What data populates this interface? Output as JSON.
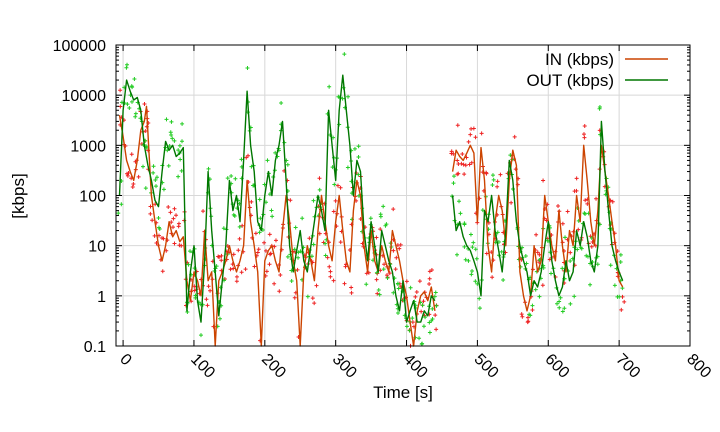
{
  "chart_data": {
    "type": "line",
    "xlabel": "Time [s]",
    "ylabel": "[kbps]",
    "xlim": [
      -10,
      800
    ],
    "ylim": [
      0.1,
      100000
    ],
    "yscale": "log",
    "grid": true,
    "legend_position": "top-right",
    "x_ticks": [
      {
        "value": 0,
        "label": "0"
      },
      {
        "value": 100,
        "label": "100"
      },
      {
        "value": 200,
        "label": "200"
      },
      {
        "value": 300,
        "label": "300"
      },
      {
        "value": 400,
        "label": "400"
      },
      {
        "value": 500,
        "label": "500"
      },
      {
        "value": 600,
        "label": "600"
      },
      {
        "value": 700,
        "label": "700"
      },
      {
        "value": 800,
        "label": "800"
      }
    ],
    "y_ticks": [
      {
        "value": 0.1,
        "label": "0.1"
      },
      {
        "value": 1,
        "label": "1"
      },
      {
        "value": 10,
        "label": "10"
      },
      {
        "value": 100,
        "label": "100"
      },
      {
        "value": 1000,
        "label": "1000"
      },
      {
        "value": 10000,
        "label": "10000"
      },
      {
        "value": 100000,
        "label": "100000"
      }
    ],
    "series": [
      {
        "name": "IN (kbps)",
        "color": "#cc4400",
        "scatter_color": "#ee2222",
        "values": [
          [
            -5,
            4000
          ],
          [
            0,
            1500
          ],
          [
            5,
            500
          ],
          [
            10,
            300
          ],
          [
            15,
            200
          ],
          [
            20,
            500
          ],
          [
            25,
            2000
          ],
          [
            30,
            3000
          ],
          [
            33,
            6000
          ],
          [
            36,
            1000
          ],
          [
            40,
            100
          ],
          [
            45,
            30
          ],
          [
            50,
            10
          ],
          [
            55,
            5
          ],
          [
            60,
            10
          ],
          [
            65,
            30
          ],
          [
            70,
            15
          ],
          [
            75,
            20
          ],
          [
            80,
            12
          ],
          [
            85,
            15
          ],
          [
            90,
            2
          ],
          [
            95,
            0.8
          ],
          [
            100,
            3
          ],
          [
            105,
            2
          ],
          [
            110,
            1
          ],
          [
            115,
            20
          ],
          [
            120,
            2
          ],
          [
            125,
            3
          ],
          [
            130,
            0.1
          ],
          [
            135,
            2
          ],
          [
            140,
            3
          ],
          [
            145,
            5
          ],
          [
            150,
            10
          ],
          [
            155,
            5
          ],
          [
            160,
            3
          ],
          [
            165,
            5
          ],
          [
            170,
            10
          ],
          [
            175,
            200
          ],
          [
            180,
            30
          ],
          [
            185,
            10
          ],
          [
            190,
            3
          ],
          [
            195,
            0.05
          ],
          [
            200,
            5
          ],
          [
            205,
            8
          ],
          [
            210,
            10
          ],
          [
            215,
            5
          ],
          [
            220,
            3
          ],
          [
            225,
            20
          ],
          [
            230,
            100
          ],
          [
            235,
            30
          ],
          [
            240,
            5
          ],
          [
            245,
            2
          ],
          [
            250,
            0.05
          ],
          [
            255,
            3
          ],
          [
            260,
            10
          ],
          [
            265,
            5
          ],
          [
            270,
            2
          ],
          [
            275,
            20
          ],
          [
            280,
            100
          ],
          [
            285,
            30
          ],
          [
            290,
            10
          ],
          [
            295,
            5
          ],
          [
            300,
            30
          ],
          [
            305,
            100
          ],
          [
            310,
            20
          ],
          [
            315,
            5
          ],
          [
            320,
            3
          ],
          [
            325,
            50
          ],
          [
            330,
            200
          ],
          [
            335,
            100
          ],
          [
            340,
            10
          ],
          [
            345,
            3
          ],
          [
            350,
            20
          ],
          [
            355,
            5
          ],
          [
            360,
            3
          ],
          [
            365,
            10
          ],
          [
            370,
            5
          ],
          [
            375,
            3
          ],
          [
            380,
            20
          ],
          [
            385,
            10
          ],
          [
            390,
            5
          ],
          [
            395,
            2
          ],
          [
            400,
            1
          ],
          [
            405,
            0.3
          ],
          [
            410,
            0.1
          ],
          [
            415,
            0.5
          ],
          [
            420,
            1
          ],
          [
            425,
            1.2
          ],
          [
            430,
            0.8
          ],
          [
            435,
            1.5
          ],
          [
            440,
            0.5
          ],
          [
            465,
            300
          ],
          [
            470,
            800
          ],
          [
            475,
            600
          ],
          [
            480,
            500
          ],
          [
            485,
            700
          ],
          [
            490,
            1000
          ],
          [
            495,
            700
          ],
          [
            500,
            30
          ],
          [
            505,
            900
          ],
          [
            510,
            200
          ],
          [
            515,
            10
          ],
          [
            520,
            3
          ],
          [
            525,
            30
          ],
          [
            530,
            100
          ],
          [
            535,
            50
          ],
          [
            540,
            10
          ],
          [
            545,
            200
          ],
          [
            550,
            800
          ],
          [
            555,
            400
          ],
          [
            560,
            3
          ],
          [
            565,
            1
          ],
          [
            570,
            0.5
          ],
          [
            575,
            1
          ],
          [
            580,
            10
          ],
          [
            585,
            3
          ],
          [
            590,
            5
          ],
          [
            595,
            100
          ],
          [
            600,
            30
          ],
          [
            605,
            10
          ],
          [
            610,
            5
          ],
          [
            615,
            50
          ],
          [
            620,
            10
          ],
          [
            625,
            3
          ],
          [
            630,
            20
          ],
          [
            635,
            10
          ],
          [
            640,
            100
          ],
          [
            645,
            30
          ],
          [
            650,
            1000
          ],
          [
            655,
            200
          ],
          [
            660,
            30
          ],
          [
            665,
            10
          ],
          [
            670,
            50
          ],
          [
            675,
            1000
          ],
          [
            680,
            300
          ],
          [
            685,
            100
          ],
          [
            690,
            30
          ],
          [
            695,
            10
          ],
          [
            700,
            2
          ],
          [
            705,
            1.5
          ]
        ]
      },
      {
        "name": "OUT (kbps)",
        "color": "#007700",
        "scatter_color": "#22cc22",
        "values": [
          [
            -5,
            100
          ],
          [
            0,
            5000
          ],
          [
            5,
            20000
          ],
          [
            10,
            12000
          ],
          [
            15,
            8000
          ],
          [
            20,
            9000
          ],
          [
            25,
            5000
          ],
          [
            30,
            1000
          ],
          [
            35,
            400
          ],
          [
            40,
            200
          ],
          [
            45,
            80
          ],
          [
            50,
            60
          ],
          [
            55,
            300
          ],
          [
            60,
            1200
          ],
          [
            65,
            800
          ],
          [
            70,
            1000
          ],
          [
            75,
            600
          ],
          [
            80,
            700
          ],
          [
            85,
            900
          ],
          [
            90,
            0.5
          ],
          [
            95,
            3
          ],
          [
            100,
            10
          ],
          [
            105,
            0.8
          ],
          [
            110,
            0.3
          ],
          [
            115,
            5
          ],
          [
            120,
            300
          ],
          [
            125,
            20
          ],
          [
            130,
            3
          ],
          [
            135,
            0.4
          ],
          [
            140,
            2
          ],
          [
            145,
            10
          ],
          [
            150,
            200
          ],
          [
            155,
            50
          ],
          [
            160,
            100
          ],
          [
            165,
            30
          ],
          [
            170,
            500
          ],
          [
            175,
            12000
          ],
          [
            180,
            1000
          ],
          [
            185,
            300
          ],
          [
            190,
            30
          ],
          [
            195,
            20
          ],
          [
            200,
            100
          ],
          [
            205,
            300
          ],
          [
            210,
            100
          ],
          [
            215,
            500
          ],
          [
            220,
            1000
          ],
          [
            225,
            3000
          ],
          [
            230,
            200
          ],
          [
            235,
            10
          ],
          [
            240,
            3
          ],
          [
            245,
            8
          ],
          [
            250,
            20
          ],
          [
            255,
            5
          ],
          [
            260,
            3
          ],
          [
            265,
            10
          ],
          [
            270,
            30
          ],
          [
            275,
            100
          ],
          [
            280,
            50
          ],
          [
            285,
            20
          ],
          [
            290,
            5000
          ],
          [
            295,
            1000
          ],
          [
            300,
            200
          ],
          [
            305,
            5000
          ],
          [
            310,
            25000
          ],
          [
            315,
            5000
          ],
          [
            320,
            1000
          ],
          [
            325,
            100
          ],
          [
            330,
            500
          ],
          [
            335,
            300
          ],
          [
            340,
            20
          ],
          [
            345,
            5
          ],
          [
            350,
            30
          ],
          [
            355,
            10
          ],
          [
            360,
            3
          ],
          [
            365,
            20
          ],
          [
            370,
            10
          ],
          [
            375,
            5
          ],
          [
            380,
            3
          ],
          [
            385,
            1
          ],
          [
            390,
            0.5
          ],
          [
            395,
            2
          ],
          [
            400,
            0.3
          ],
          [
            405,
            0.5
          ],
          [
            410,
            0.8
          ],
          [
            415,
            0.3
          ],
          [
            420,
            0.3
          ],
          [
            425,
            0.5
          ],
          [
            430,
            0.4
          ],
          [
            435,
            1
          ],
          [
            440,
            0.8
          ],
          [
            465,
            100
          ],
          [
            470,
            20
          ],
          [
            475,
            30
          ],
          [
            480,
            15
          ],
          [
            485,
            10
          ],
          [
            490,
            8
          ],
          [
            495,
            5
          ],
          [
            500,
            3
          ],
          [
            505,
            1
          ],
          [
            510,
            50
          ],
          [
            515,
            30
          ],
          [
            520,
            100
          ],
          [
            525,
            20
          ],
          [
            530,
            8
          ],
          [
            535,
            3
          ],
          [
            540,
            20
          ],
          [
            545,
            500
          ],
          [
            550,
            200
          ],
          [
            555,
            30
          ],
          [
            560,
            10
          ],
          [
            565,
            5
          ],
          [
            570,
            3
          ],
          [
            575,
            1
          ],
          [
            580,
            2
          ],
          [
            585,
            1.5
          ],
          [
            590,
            3
          ],
          [
            595,
            10
          ],
          [
            600,
            30
          ],
          [
            605,
            5
          ],
          [
            610,
            2
          ],
          [
            615,
            1
          ],
          [
            620,
            1.5
          ],
          [
            625,
            5
          ],
          [
            630,
            2
          ],
          [
            635,
            3
          ],
          [
            640,
            20
          ],
          [
            645,
            10
          ],
          [
            650,
            30
          ],
          [
            655,
            15
          ],
          [
            660,
            5
          ],
          [
            665,
            3
          ],
          [
            670,
            10
          ],
          [
            675,
            3000
          ],
          [
            680,
            300
          ],
          [
            685,
            50
          ],
          [
            690,
            10
          ],
          [
            695,
            5
          ],
          [
            700,
            3
          ],
          [
            705,
            2
          ]
        ]
      }
    ]
  }
}
